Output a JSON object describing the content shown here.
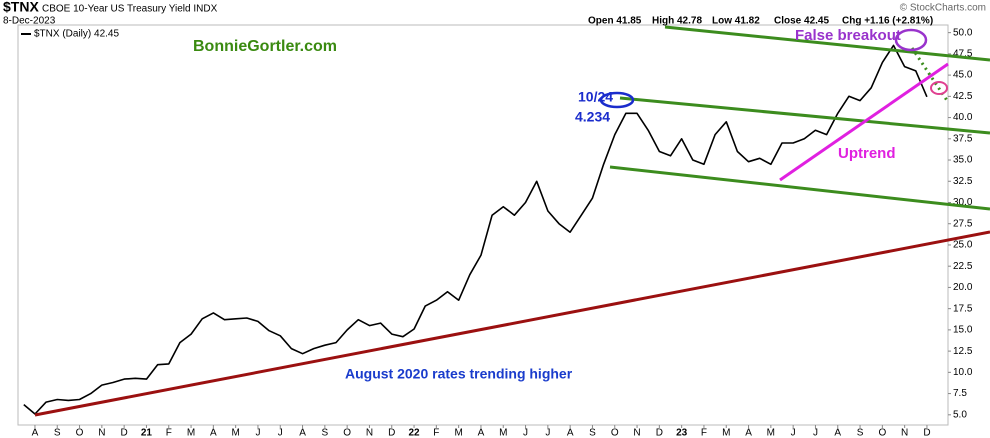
{
  "chart_data": {
    "type": "line",
    "symbol": "$TNX",
    "title": "CBOE 10-Year US Treasury Yield INDX",
    "date": "8-Dec-2023",
    "source": "© StockCharts.com",
    "quote": [
      "Open 41.85",
      "High 42.78",
      "Low 41.82",
      "Close 42.45",
      "Chg +1.16 (+2.81%)"
    ],
    "annotations": [
      "BonnieGortler.com",
      "10/24",
      "4.234",
      "False breakout",
      "Uptrend",
      "August 2020 rates trending higher"
    ],
    "categories": [
      null,
      "A",
      null,
      "S",
      null,
      "O",
      null,
      "N",
      null,
      "D",
      null,
      "21",
      null,
      "F",
      null,
      "M",
      null,
      "A",
      null,
      "M",
      null,
      "J",
      null,
      "J",
      null,
      "A",
      null,
      "S",
      null,
      "O",
      null,
      "N",
      null,
      "D",
      null,
      "22",
      null,
      "F",
      null,
      "M",
      null,
      "A",
      null,
      "M",
      null,
      "J",
      null,
      "J",
      null,
      "A",
      null,
      "S",
      null,
      "O",
      null,
      "N",
      null,
      "D",
      null,
      "23",
      null,
      "F",
      null,
      "M",
      null,
      "A",
      null,
      "M",
      null,
      "J",
      null,
      "J",
      null,
      "A",
      null,
      "S",
      null,
      "O",
      null,
      "N",
      null,
      "D"
    ],
    "series": [
      {
        "name": "$TNX (Daily) 42.45",
        "color": "#000000",
        "values": [
          6.2,
          5.1,
          6.5,
          6.8,
          6.7,
          6.8,
          7.5,
          8.5,
          8.8,
          9.2,
          9.3,
          9.2,
          10.9,
          11.0,
          13.5,
          14.5,
          16.3,
          17.0,
          16.2,
          16.3,
          16.4,
          16.0,
          14.9,
          14.3,
          12.8,
          12.2,
          12.8,
          13.2,
          13.5,
          15.0,
          16.2,
          15.5,
          15.8,
          14.5,
          14.2,
          15.1,
          17.8,
          18.5,
          19.5,
          18.5,
          21.5,
          23.8,
          28.5,
          29.5,
          28.5,
          30.0,
          32.5,
          29.0,
          27.5,
          26.5,
          28.5,
          30.5,
          34.5,
          38.0,
          40.5,
          40.5,
          38.5,
          36.0,
          35.5,
          37.5,
          35.0,
          34.5,
          38.0,
          39.5,
          36.0,
          34.8,
          35.2,
          34.5,
          37.0,
          37.0,
          37.5,
          38.5,
          38.0,
          40.5,
          42.5,
          42.0,
          43.5,
          46.5,
          48.5,
          46.0,
          45.5,
          42.45
        ]
      }
    ],
    "ylim": [
      3.8,
      50.9
    ],
    "yticks": [
      {
        "value": 5,
        "label": "5.0"
      },
      7.5,
      {
        "value": 10,
        "label": "10.0"
      },
      12.5,
      {
        "value": 15,
        "label": "15.0"
      },
      17.5,
      {
        "value": 20,
        "label": "20.0"
      },
      22.5,
      {
        "value": 25,
        "label": "25.0"
      },
      27.5,
      {
        "value": 30,
        "label": "30.0"
      },
      32.5,
      {
        "value": 35,
        "label": "35.0"
      },
      37.5,
      {
        "value": 40,
        "label": "40.0"
      },
      42.5,
      {
        "value": 45,
        "label": "45.0"
      },
      47.5,
      {
        "value": 50,
        "label": "50.0"
      }
    ],
    "grid": false
  }
}
